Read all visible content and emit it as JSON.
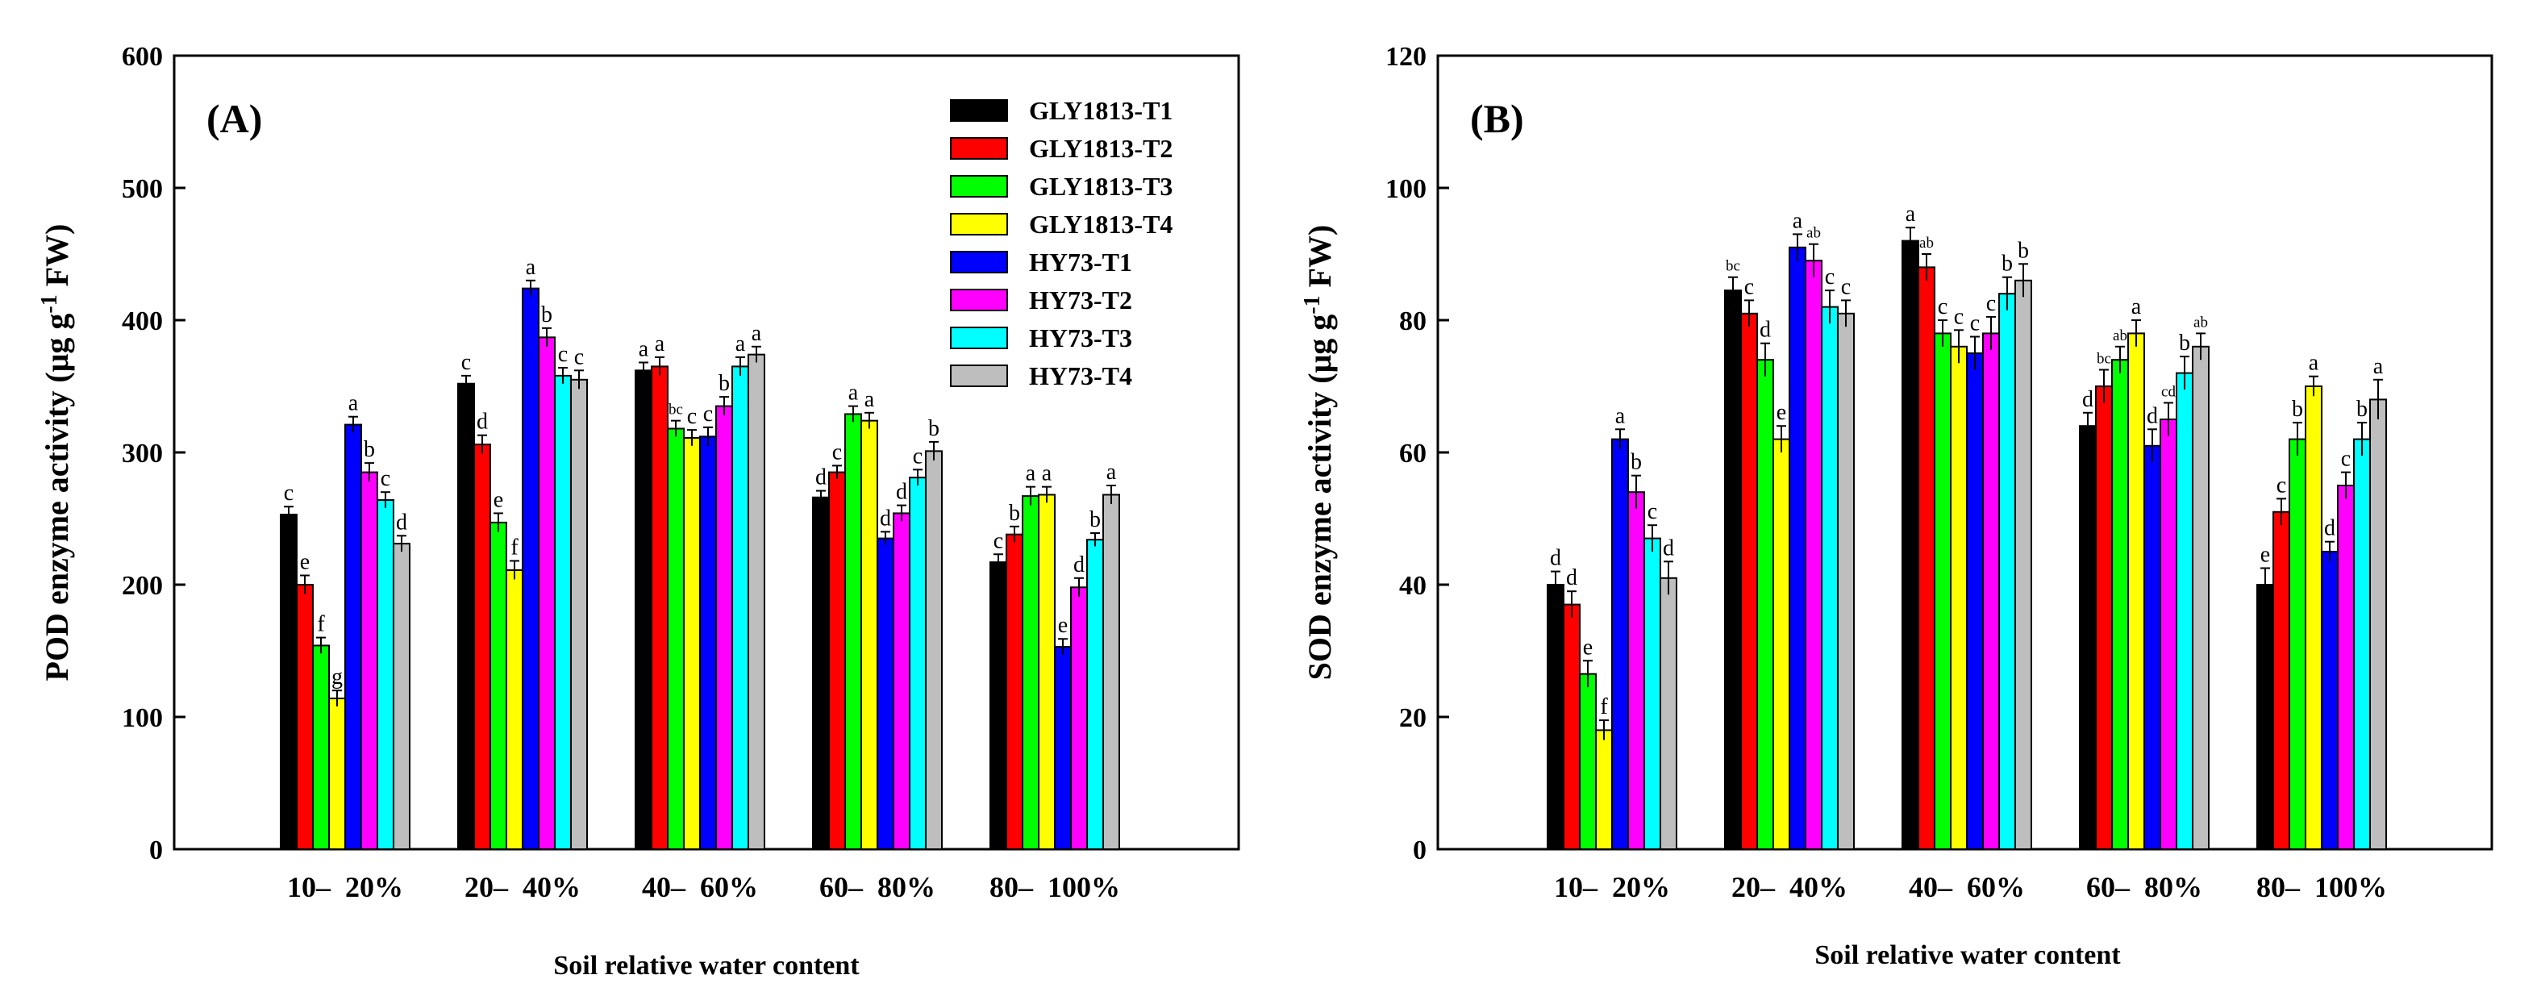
{
  "colors": {
    "GLY1813-T1": "#000000",
    "GLY1813-T2": "#ff0000",
    "GLY1813-T3": "#00ff00",
    "GLY1813-T4": "#ffff00",
    "HY73-T1": "#0000ff",
    "HY73-T2": "#ff00ff",
    "HY73-T3": "#00ffff",
    "HY73-T4": "#bebebe"
  },
  "chart_data": [
    {
      "type": "bar",
      "panel_label": "(A)",
      "xlabel": "Soil relative water content",
      "ylabel": "POD enzyme activity (μg g⁻¹ FW)",
      "ylim": [
        0,
        600
      ],
      "yticks": [
        "0",
        "100",
        "200",
        "300",
        "400",
        "500",
        "600"
      ],
      "categories": [
        "10–  20%",
        "20–  40%",
        "40–  60%",
        "60–  80%",
        "80–  100%"
      ],
      "legend_position": "top-right",
      "series": [
        {
          "name": "GLY1813-T1",
          "values": [
            253,
            352,
            362,
            266,
            217
          ],
          "errors": [
            6,
            6,
            6,
            5,
            6
          ],
          "letters": [
            "c",
            "c",
            "a",
            "d",
            "c"
          ]
        },
        {
          "name": "GLY1813-T2",
          "values": [
            200,
            306,
            365,
            285,
            238
          ],
          "errors": [
            7,
            7,
            7,
            5,
            6
          ],
          "letters": [
            "e",
            "d",
            "a",
            "c",
            "b"
          ]
        },
        {
          "name": "GLY1813-T3",
          "values": [
            154,
            247,
            318,
            329,
            267
          ],
          "errors": [
            6,
            7,
            6,
            6,
            7
          ],
          "letters": [
            "f",
            "e",
            "bc",
            "a",
            "a"
          ]
        },
        {
          "name": "GLY1813-T4",
          "values": [
            114,
            211,
            311,
            324,
            268
          ],
          "errors": [
            6,
            7,
            6,
            6,
            6
          ],
          "letters": [
            "g",
            "f",
            "c",
            "a",
            "a"
          ]
        },
        {
          "name": "HY73-T1",
          "values": [
            321,
            424,
            312,
            235,
            153
          ],
          "errors": [
            6,
            6,
            7,
            5,
            6
          ],
          "letters": [
            "a",
            "a",
            "c",
            "d",
            "e"
          ]
        },
        {
          "name": "HY73-T2",
          "values": [
            285,
            387,
            335,
            254,
            198
          ],
          "errors": [
            7,
            7,
            7,
            6,
            7
          ],
          "letters": [
            "b",
            "b",
            "b",
            "d",
            "d"
          ]
        },
        {
          "name": "HY73-T3",
          "values": [
            264,
            358,
            365,
            281,
            234
          ],
          "errors": [
            6,
            6,
            7,
            6,
            5
          ],
          "letters": [
            "c",
            "c",
            "a",
            "c",
            "b"
          ]
        },
        {
          "name": "HY73-T4",
          "values": [
            231,
            355,
            374,
            301,
            268
          ],
          "errors": [
            6,
            7,
            6,
            7,
            7
          ],
          "letters": [
            "d",
            "c",
            "a",
            "b",
            "a"
          ]
        }
      ]
    },
    {
      "type": "bar",
      "panel_label": "(B)",
      "xlabel": "Soil relative water content",
      "ylabel": "SOD enzyme activity (μg g⁻¹ FW)",
      "ylim": [
        0,
        120
      ],
      "yticks": [
        "0",
        "20",
        "40",
        "60",
        "80",
        "100",
        "120"
      ],
      "categories": [
        "10–  20%",
        "20–  40%",
        "40–  60%",
        "60–  80%",
        "80–  100%"
      ],
      "series": [
        {
          "name": "GLY1813-T1",
          "values": [
            40,
            84.5,
            92,
            64,
            40
          ],
          "errors": [
            2,
            2,
            2,
            2,
            2.5
          ],
          "letters": [
            "d",
            "bc",
            "a",
            "d",
            "e"
          ]
        },
        {
          "name": "GLY1813-T2",
          "values": [
            37,
            81,
            88,
            70,
            51
          ],
          "errors": [
            2,
            2,
            2,
            2.5,
            2
          ],
          "letters": [
            "d",
            "c",
            "ab",
            "bc",
            "c"
          ]
        },
        {
          "name": "GLY1813-T3",
          "values": [
            26.5,
            74,
            78,
            74,
            62
          ],
          "errors": [
            2,
            2.5,
            2,
            2,
            2.5
          ],
          "letters": [
            "e",
            "d",
            "c",
            "ab",
            "b"
          ]
        },
        {
          "name": "GLY1813-T4",
          "values": [
            18,
            62,
            76,
            78,
            70
          ],
          "errors": [
            1.5,
            2,
            2.5,
            2,
            1.5
          ],
          "letters": [
            "f",
            "e",
            "c",
            "a",
            "a"
          ]
        },
        {
          "name": "HY73-T1",
          "values": [
            62,
            91,
            75,
            61,
            45
          ],
          "errors": [
            1.5,
            2,
            2.5,
            2.5,
            1.5
          ],
          "letters": [
            "a",
            "a",
            "c",
            "d",
            "d"
          ]
        },
        {
          "name": "HY73-T2",
          "values": [
            54,
            89,
            78,
            65,
            55
          ],
          "errors": [
            2.5,
            2.5,
            2.5,
            2.5,
            2
          ],
          "letters": [
            "b",
            "ab",
            "c",
            "cd",
            "c"
          ]
        },
        {
          "name": "HY73-T3",
          "values": [
            47,
            82,
            84,
            72,
            62
          ],
          "errors": [
            2,
            2.5,
            2.5,
            2.5,
            2.5
          ],
          "letters": [
            "c",
            "c",
            "b",
            "b",
            "b"
          ]
        },
        {
          "name": "HY73-T4",
          "values": [
            41,
            81,
            86,
            76,
            68
          ],
          "errors": [
            2.5,
            2,
            2.5,
            2,
            3
          ],
          "letters": [
            "d",
            "c",
            "b",
            "ab",
            "a"
          ]
        }
      ]
    }
  ]
}
